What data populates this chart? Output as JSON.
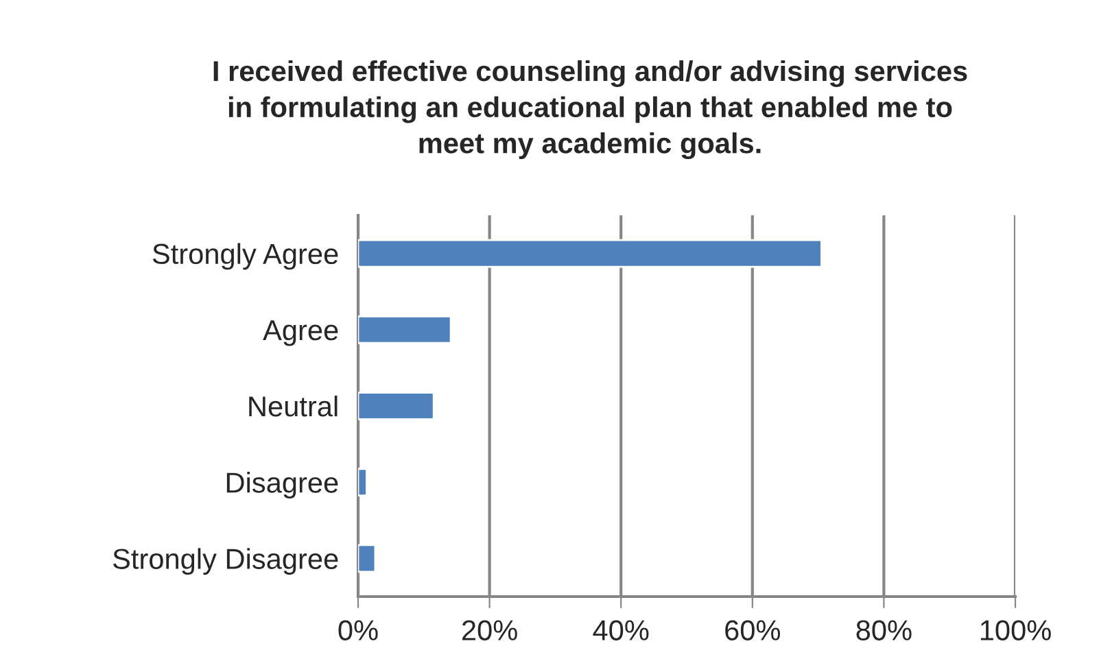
{
  "chart_data": {
    "type": "bar",
    "orientation": "horizontal",
    "title": "I received effective counseling and/or advising services\nin formulating an educational plan that enabled me to\nmeet my academic goals.",
    "categories": [
      "Strongly Agree",
      "Agree",
      "Neutral",
      "Disagree",
      "Strongly Disagree"
    ],
    "values": [
      70.5,
      14.1,
      11.5,
      1.3,
      2.6
    ],
    "color": "#4f81bd",
    "xlim": [
      0,
      100
    ],
    "xticks": [
      {
        "value": 0,
        "label": "0%"
      },
      {
        "value": 20,
        "label": "20%"
      },
      {
        "value": 40,
        "label": "40%"
      },
      {
        "value": 60,
        "label": "60%"
      },
      {
        "value": 80,
        "label": "80%"
      },
      {
        "value": 100,
        "label": "100%"
      }
    ],
    "grid": "x",
    "legend": false
  }
}
